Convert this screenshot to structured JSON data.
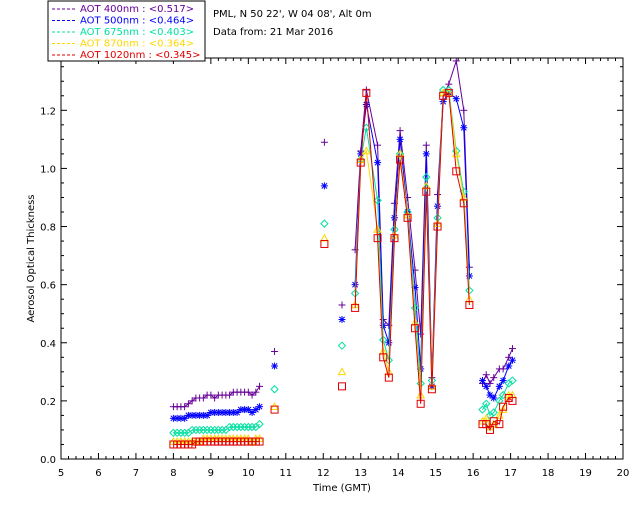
{
  "chart_data": {
    "type": "line",
    "xlabel": "Time (GMT)",
    "ylabel": "Aerosol Optical Thickness",
    "xlim": [
      5,
      20
    ],
    "ylim": [
      0,
      1.38
    ],
    "xticks": [
      5,
      6,
      7,
      8,
      9,
      10,
      11,
      12,
      13,
      14,
      15,
      16,
      17,
      18,
      19,
      20
    ],
    "yticks": [
      0.0,
      0.2,
      0.4,
      0.6,
      0.8,
      1.0,
      1.2
    ],
    "ytick_labels": [
      "0.0",
      "0.2",
      "0.4",
      "0.6",
      "0.8",
      "1.0",
      "1.2"
    ],
    "info_lines": [
      "PML, N 50 22', W 04 08', Alt 0m",
      "Data from: 21 Mar 2016"
    ],
    "legend_position": "top-left outside",
    "series": [
      {
        "name": "AOT  400nm : <0.517>",
        "color": "#660099",
        "marker": "plus",
        "segments": [
          {
            "x": [
              8.0,
              8.1,
              8.2,
              8.3,
              8.4,
              8.5,
              8.6,
              8.7,
              8.8,
              8.9,
              9.0,
              9.1,
              9.2,
              9.3,
              9.4,
              9.5,
              9.6,
              9.7,
              9.8,
              9.9,
              10.0,
              10.1,
              10.2,
              10.3
            ],
            "y": [
              0.18,
              0.18,
              0.18,
              0.18,
              0.19,
              0.2,
              0.21,
              0.21,
              0.21,
              0.22,
              0.22,
              0.21,
              0.22,
              0.22,
              0.22,
              0.22,
              0.23,
              0.23,
              0.23,
              0.23,
              0.23,
              0.22,
              0.23,
              0.25
            ]
          },
          {
            "x": [
              10.7
            ],
            "y": [
              0.37
            ]
          },
          {
            "x": [
              12.03
            ],
            "y": [
              1.09
            ]
          },
          {
            "x": [
              12.5
            ],
            "y": [
              0.53
            ]
          },
          {
            "x": [
              12.85,
              13.0,
              13.15,
              13.45,
              13.6,
              13.75,
              13.9,
              14.05,
              14.25,
              14.45,
              14.6,
              14.75,
              14.9,
              15.05,
              15.2,
              15.35,
              15.55,
              15.75,
              15.9
            ],
            "y": [
              0.72,
              1.06,
              1.27,
              1.08,
              0.48,
              0.46,
              0.88,
              1.13,
              0.9,
              0.65,
              0.43,
              1.08,
              0.28,
              0.91,
              1.25,
              1.29,
              1.37,
              1.2,
              0.66
            ]
          },
          {
            "x": [
              16.25,
              16.35,
              16.45,
              16.55,
              16.7,
              16.8,
              16.95,
              17.05
            ],
            "y": [
              0.26,
              0.29,
              0.26,
              0.28,
              0.31,
              0.31,
              0.35,
              0.38
            ]
          }
        ]
      },
      {
        "name": "AOT  500nm : <0.464>",
        "color": "#0000ff",
        "marker": "asterisk",
        "segments": [
          {
            "x": [
              8.0,
              8.1,
              8.2,
              8.3,
              8.4,
              8.5,
              8.6,
              8.7,
              8.8,
              8.9,
              9.0,
              9.1,
              9.2,
              9.3,
              9.4,
              9.5,
              9.6,
              9.7,
              9.8,
              9.9,
              10.0,
              10.1,
              10.2,
              10.3
            ],
            "y": [
              0.14,
              0.14,
              0.14,
              0.14,
              0.15,
              0.15,
              0.15,
              0.15,
              0.15,
              0.15,
              0.16,
              0.16,
              0.16,
              0.16,
              0.16,
              0.16,
              0.16,
              0.16,
              0.17,
              0.17,
              0.17,
              0.16,
              0.17,
              0.18
            ]
          },
          {
            "x": [
              10.7
            ],
            "y": [
              0.32
            ]
          },
          {
            "x": [
              12.03
            ],
            "y": [
              0.94
            ]
          },
          {
            "x": [
              12.5
            ],
            "y": [
              0.48
            ]
          },
          {
            "x": [
              12.85,
              13.0,
              13.15,
              13.45,
              13.6,
              13.75,
              13.9,
              14.05,
              14.25,
              14.45,
              14.6,
              14.75,
              14.9,
              15.05,
              15.2,
              15.35,
              15.55,
              15.75,
              15.9
            ],
            "y": [
              0.6,
              1.05,
              1.22,
              1.02,
              0.46,
              0.4,
              0.83,
              1.1,
              0.85,
              0.59,
              0.31,
              1.05,
              0.25,
              0.87,
              1.23,
              1.26,
              1.24,
              1.14,
              0.63
            ]
          },
          {
            "x": [
              16.25,
              16.35,
              16.45,
              16.55,
              16.7,
              16.8,
              16.95,
              17.05
            ],
            "y": [
              0.27,
              0.25,
              0.22,
              0.21,
              0.25,
              0.27,
              0.32,
              0.34
            ]
          }
        ]
      },
      {
        "name": "AOT  675nm : <0.403>",
        "color": "#00e0a0",
        "marker": "diamond",
        "segments": [
          {
            "x": [
              8.0,
              8.1,
              8.2,
              8.3,
              8.4,
              8.5,
              8.6,
              8.7,
              8.8,
              8.9,
              9.0,
              9.1,
              9.2,
              9.3,
              9.4,
              9.5,
              9.6,
              9.7,
              9.8,
              9.9,
              10.0,
              10.1,
              10.2,
              10.3
            ],
            "y": [
              0.09,
              0.09,
              0.09,
              0.09,
              0.09,
              0.1,
              0.1,
              0.1,
              0.1,
              0.1,
              0.1,
              0.1,
              0.1,
              0.1,
              0.1,
              0.11,
              0.11,
              0.11,
              0.11,
              0.11,
              0.11,
              0.11,
              0.11,
              0.12
            ]
          },
          {
            "x": [
              10.7
            ],
            "y": [
              0.24
            ]
          },
          {
            "x": [
              12.03
            ],
            "y": [
              0.81
            ]
          },
          {
            "x": [
              12.5
            ],
            "y": [
              0.39
            ]
          },
          {
            "x": [
              12.85,
              13.0,
              13.15,
              13.45,
              13.6,
              13.75,
              13.9,
              14.05,
              14.25,
              14.45,
              14.6,
              14.75,
              14.9,
              15.05,
              15.2,
              15.35,
              15.55,
              15.75,
              15.9
            ],
            "y": [
              0.57,
              1.03,
              1.14,
              0.89,
              0.41,
              0.34,
              0.79,
              1.05,
              0.85,
              0.52,
              0.26,
              0.97,
              0.27,
              0.83,
              1.27,
              1.27,
              1.06,
              0.92,
              0.58
            ]
          },
          {
            "x": [
              16.25,
              16.35,
              16.45,
              16.55,
              16.7,
              16.8,
              16.95,
              17.05
            ],
            "y": [
              0.17,
              0.19,
              0.15,
              0.16,
              0.2,
              0.22,
              0.26,
              0.27
            ]
          }
        ]
      },
      {
        "name": "AOT  870nm : <0.364>",
        "color": "#ffd700",
        "marker": "triangle",
        "segments": [
          {
            "x": [
              8.0,
              8.1,
              8.2,
              8.3,
              8.4,
              8.5,
              8.6,
              8.7,
              8.8,
              8.9,
              9.0,
              9.1,
              9.2,
              9.3,
              9.4,
              9.5,
              9.6,
              9.7,
              9.8,
              9.9,
              10.0,
              10.1,
              10.2,
              10.3
            ],
            "y": [
              0.06,
              0.06,
              0.06,
              0.06,
              0.06,
              0.06,
              0.06,
              0.06,
              0.07,
              0.07,
              0.07,
              0.07,
              0.07,
              0.07,
              0.07,
              0.07,
              0.07,
              0.07,
              0.07,
              0.07,
              0.07,
              0.06,
              0.07,
              0.07
            ]
          },
          {
            "x": [
              10.7
            ],
            "y": [
              0.18
            ]
          },
          {
            "x": [
              12.03
            ],
            "y": [
              0.76
            ]
          },
          {
            "x": [
              12.5
            ],
            "y": [
              0.3
            ]
          },
          {
            "x": [
              12.85,
              13.0,
              13.15,
              13.45,
              13.6,
              13.75,
              13.9,
              14.05,
              14.25,
              14.45,
              14.6,
              14.75,
              14.9,
              15.05,
              15.2,
              15.35,
              15.55,
              15.75,
              15.9
            ],
            "y": [
              0.53,
              1.03,
              1.06,
              0.79,
              0.37,
              0.3,
              0.77,
              1.05,
              0.84,
              0.47,
              0.22,
              0.94,
              0.25,
              0.81,
              1.26,
              1.26,
              1.05,
              0.9,
              0.55
            ]
          },
          {
            "x": [
              16.25,
              16.35,
              16.45,
              16.55,
              16.7,
              16.8,
              16.95,
              17.05
            ],
            "y": [
              0.13,
              0.14,
              0.11,
              0.12,
              0.15,
              0.17,
              0.22,
              0.22
            ]
          }
        ]
      },
      {
        "name": "AOT 1020nm : <0.345>",
        "color": "#e00000",
        "marker": "square",
        "segments": [
          {
            "x": [
              8.0,
              8.1,
              8.2,
              8.3,
              8.4,
              8.5,
              8.6,
              8.7,
              8.8,
              8.9,
              9.0,
              9.1,
              9.2,
              9.3,
              9.4,
              9.5,
              9.6,
              9.7,
              9.8,
              9.9,
              10.0,
              10.1,
              10.2,
              10.3
            ],
            "y": [
              0.05,
              0.05,
              0.05,
              0.05,
              0.05,
              0.05,
              0.06,
              0.06,
              0.06,
              0.06,
              0.06,
              0.06,
              0.06,
              0.06,
              0.06,
              0.06,
              0.06,
              0.06,
              0.06,
              0.06,
              0.06,
              0.06,
              0.06,
              0.06
            ]
          },
          {
            "x": [
              10.7
            ],
            "y": [
              0.17
            ]
          },
          {
            "x": [
              12.03
            ],
            "y": [
              0.74
            ]
          },
          {
            "x": [
              12.5
            ],
            "y": [
              0.25
            ]
          },
          {
            "x": [
              12.85,
              13.0,
              13.15,
              13.45,
              13.6,
              13.75,
              13.9,
              14.05,
              14.25,
              14.45,
              14.6,
              14.75,
              14.9,
              15.05,
              15.2,
              15.35,
              15.55,
              15.75,
              15.9
            ],
            "y": [
              0.52,
              1.02,
              1.26,
              0.76,
              0.35,
              0.28,
              0.76,
              1.03,
              0.83,
              0.45,
              0.19,
              0.92,
              0.24,
              0.8,
              1.25,
              1.26,
              0.99,
              0.88,
              0.53
            ]
          },
          {
            "x": [
              16.25,
              16.35,
              16.45,
              16.55,
              16.7,
              16.8,
              16.95,
              17.05
            ],
            "y": [
              0.12,
              0.12,
              0.1,
              0.13,
              0.12,
              0.18,
              0.21,
              0.2
            ]
          }
        ]
      }
    ]
  }
}
